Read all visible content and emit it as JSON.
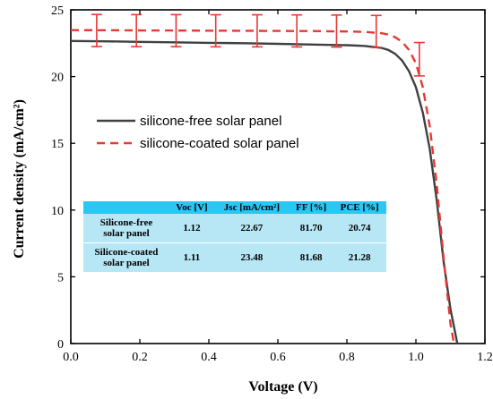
{
  "chart_data": {
    "type": "line",
    "xlabel": "Voltage (V)",
    "ylabel": "Current density (mA/cm²)",
    "xlim": [
      0.0,
      1.2
    ],
    "ylim": [
      0,
      25
    ],
    "xticks": [
      "0.0",
      "0.2",
      "0.4",
      "0.6",
      "0.8",
      "1.0",
      "1.2"
    ],
    "yticks": [
      "0",
      "5",
      "10",
      "15",
      "20",
      "25"
    ],
    "grid": false,
    "legend_position": "middle-left",
    "series": [
      {
        "name": "silicone-free solar panel",
        "style": "solid",
        "color": "#404040",
        "x": [
          0.0,
          0.1,
          0.2,
          0.3,
          0.4,
          0.5,
          0.6,
          0.7,
          0.8,
          0.85,
          0.9,
          0.92,
          0.94,
          0.96,
          0.98,
          1.0,
          1.02,
          1.04,
          1.06,
          1.08,
          1.1,
          1.12
        ],
        "y": [
          22.67,
          22.64,
          22.6,
          22.57,
          22.53,
          22.5,
          22.45,
          22.4,
          22.35,
          22.3,
          22.15,
          22.0,
          21.7,
          21.2,
          20.4,
          19.2,
          17.3,
          14.6,
          10.8,
          6.2,
          2.6,
          0.0
        ]
      },
      {
        "name": "silicone-coated solar panel",
        "style": "dashed",
        "color": "#e53935",
        "x": [
          0.0,
          0.1,
          0.2,
          0.3,
          0.4,
          0.5,
          0.6,
          0.7,
          0.8,
          0.85,
          0.9,
          0.92,
          0.94,
          0.96,
          0.98,
          1.0,
          1.02,
          1.04,
          1.06,
          1.08,
          1.1,
          1.11
        ],
        "y": [
          23.48,
          23.47,
          23.46,
          23.45,
          23.44,
          23.43,
          23.42,
          23.41,
          23.38,
          23.35,
          23.25,
          23.15,
          22.95,
          22.6,
          22.0,
          21.0,
          19.2,
          16.3,
          12.0,
          6.5,
          1.5,
          0.0
        ]
      }
    ],
    "error_bars": {
      "series": "silicone-coated solar panel",
      "x": [
        0.075,
        0.19,
        0.305,
        0.42,
        0.54,
        0.655,
        0.77,
        0.885,
        1.01
      ],
      "y": [
        23.45,
        23.44,
        23.44,
        23.43,
        23.43,
        23.42,
        23.41,
        23.38,
        21.3
      ],
      "err": [
        1.2,
        1.2,
        1.2,
        1.2,
        1.2,
        1.2,
        1.2,
        1.2,
        1.25
      ]
    },
    "table": {
      "headers": [
        "",
        "Voc [V]",
        "Jsc [mA/cm²]",
        "FF [%]",
        "PCE [%]"
      ],
      "rows": [
        {
          "label_line1": "Silicone-free",
          "label_line2": "solar panel",
          "voc": "1.12",
          "jsc": "22.67",
          "ff": "81.70",
          "pce": "20.74"
        },
        {
          "label_line1": "Silicone-coated",
          "label_line2": "solar panel",
          "voc": "1.11",
          "jsc": "23.48",
          "ff": "81.68",
          "pce": "21.28"
        }
      ]
    }
  }
}
